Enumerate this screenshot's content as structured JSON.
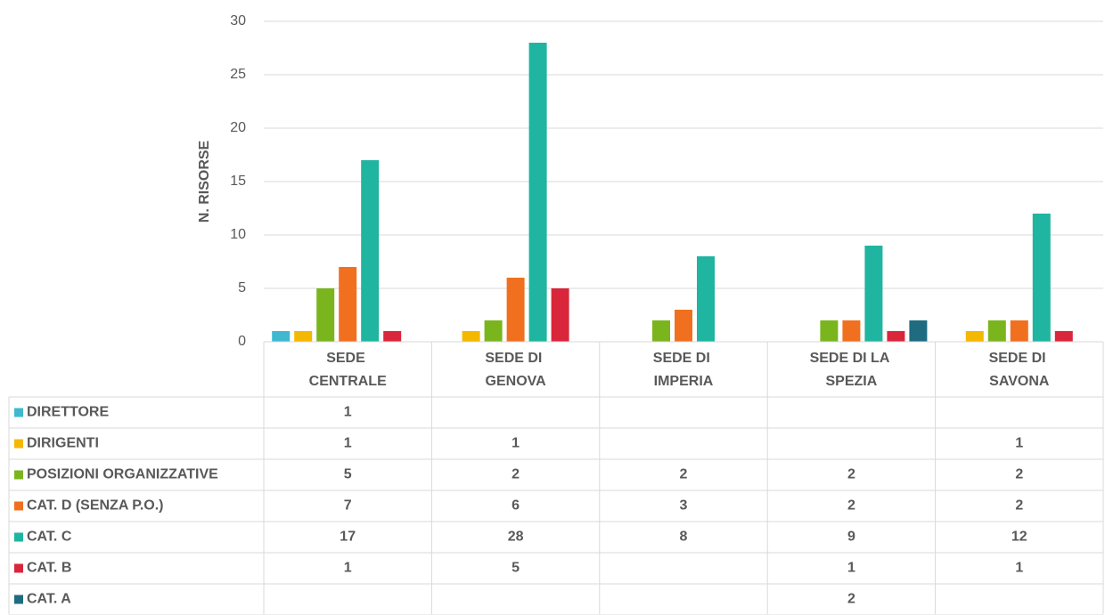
{
  "chart_data": {
    "type": "bar",
    "y_label": "N. RISORSE",
    "categories": [
      "SEDE CENTRALE",
      "SEDE DI GENOVA",
      "SEDE DI IMPERIA",
      "SEDE DI LA SPEZIA",
      "SEDE DI SAVONA"
    ],
    "series": [
      {
        "name": "DIRETTORE",
        "color": "#3fb8d0",
        "values": [
          1,
          null,
          null,
          null,
          null
        ]
      },
      {
        "name": "DIRIGENTI",
        "color": "#f5b800",
        "values": [
          1,
          1,
          null,
          null,
          1
        ]
      },
      {
        "name": "POSIZIONI ORGANIZZATIVE",
        "color": "#7ab51d",
        "values": [
          5,
          2,
          2,
          2,
          2
        ]
      },
      {
        "name": "CAT. D (SENZA P.O.)",
        "color": "#f07020",
        "values": [
          7,
          6,
          3,
          2,
          2
        ]
      },
      {
        "name": "CAT. C",
        "color": "#1fb5a0",
        "values": [
          17,
          28,
          8,
          9,
          12
        ]
      },
      {
        "name": "CAT. B",
        "color": "#d9263a",
        "values": [
          1,
          5,
          null,
          1,
          1
        ]
      },
      {
        "name": "CAT. A",
        "color": "#1f6b80",
        "values": [
          null,
          null,
          null,
          2,
          null
        ]
      }
    ],
    "ylim": [
      0,
      30
    ],
    "yticks": [
      0,
      5,
      10,
      15,
      20,
      25,
      30
    ],
    "grid": true,
    "data_table": true
  }
}
